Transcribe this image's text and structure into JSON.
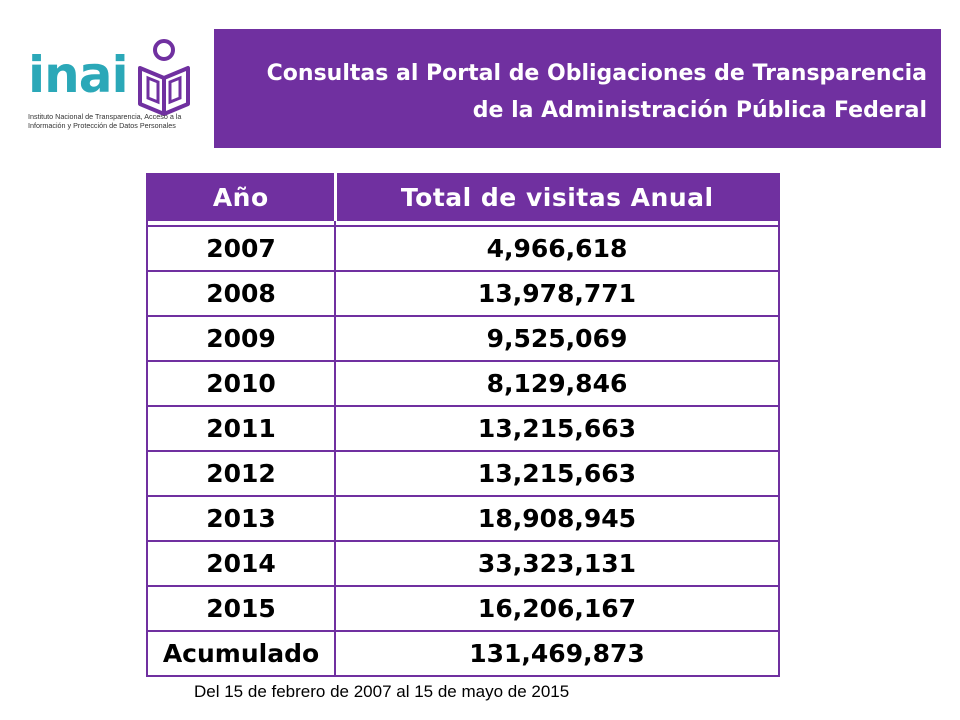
{
  "logo": {
    "wordmark": "inai",
    "caption_line1": "Instituto Nacional de Transparencia, Acceso a la",
    "caption_line2": "Información y Protección de Datos Personales"
  },
  "banner": {
    "line1": "Consultas al Portal de Obligaciones de Transparencia",
    "line2": "de la Administración Pública Federal"
  },
  "table": {
    "headers": [
      "Año",
      "Total de visitas Anual"
    ],
    "rows": [
      {
        "year": "2007",
        "visits": "4,966,618"
      },
      {
        "year": "2008",
        "visits": "13,978,771"
      },
      {
        "year": "2009",
        "visits": "9,525,069"
      },
      {
        "year": "2010",
        "visits": "8,129,846"
      },
      {
        "year": "2011",
        "visits": "13,215,663"
      },
      {
        "year": "2012",
        "visits": "13,215,663"
      },
      {
        "year": "2013",
        "visits": "18,908,945"
      },
      {
        "year": "2014",
        "visits": "33,323,131"
      },
      {
        "year": "2015",
        "visits": "16,206,167"
      },
      {
        "year": "Acumulado",
        "visits": "131,469,873"
      }
    ]
  },
  "footnote": "Del 15 de febrero de 2007 al 15 de mayo de 2015",
  "colors": {
    "brand_purple": "#7030a0",
    "logo_teal": "#2ba8b8"
  }
}
